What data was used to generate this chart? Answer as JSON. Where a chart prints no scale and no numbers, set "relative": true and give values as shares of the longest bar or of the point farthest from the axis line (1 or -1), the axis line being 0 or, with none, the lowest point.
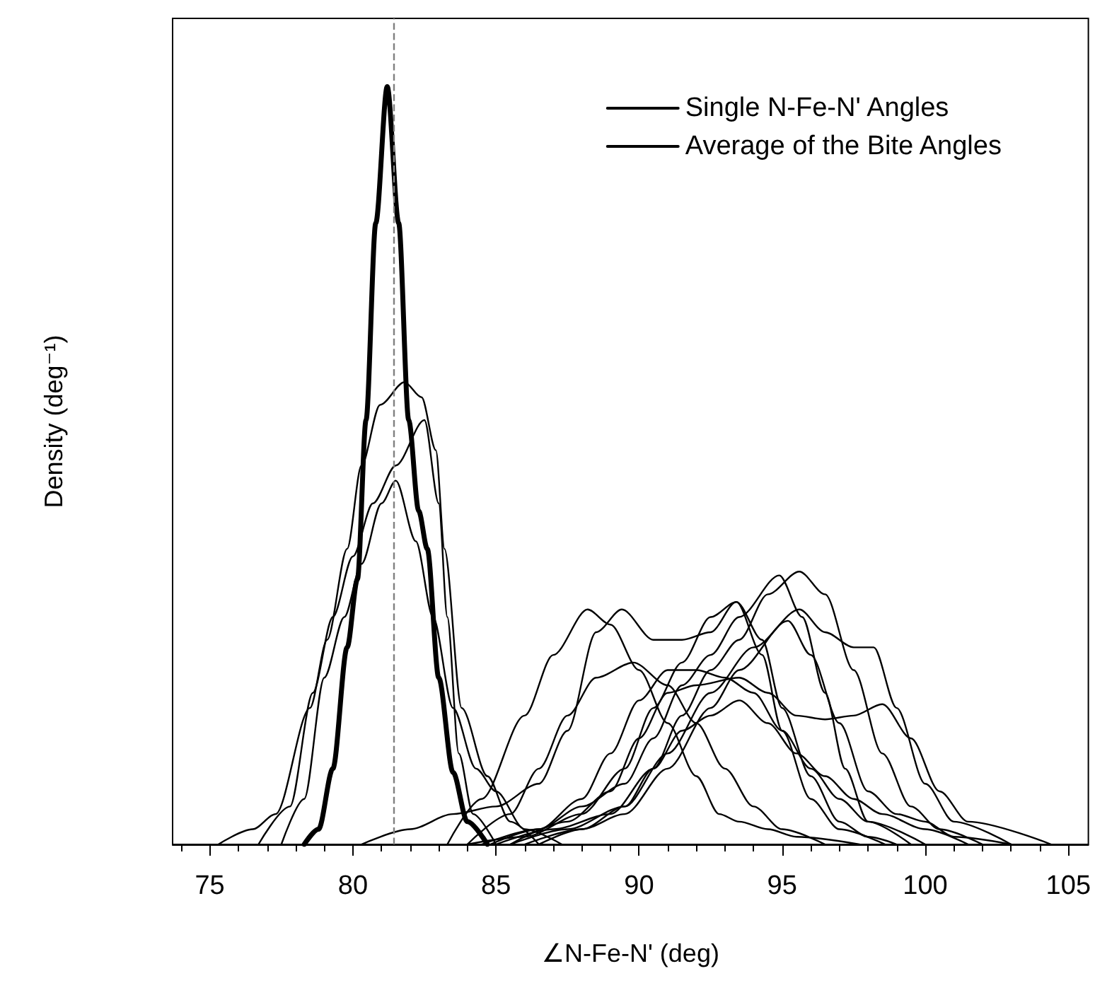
{
  "chart_data": {
    "type": "line",
    "relative": true,
    "xlabel": "∠N-Fe-N' (deg)",
    "ylabel": "Density (deg⁻¹)",
    "xlim": [
      73.7,
      105.7
    ],
    "xticks": [
      75,
      80,
      85,
      90,
      95,
      100,
      105
    ],
    "grid": false,
    "legend": "top right",
    "marker": "none",
    "line_style": "solid",
    "ref_lines": [
      {
        "axis": "x",
        "value": 81.4,
        "label": null,
        "color": "#808080",
        "line_style": "dashed"
      }
    ],
    "series": [
      {
        "name": "Single N-Fe-N' Angles",
        "color": "#000000",
        "x": [
          75.3,
          76.5,
          77.3,
          78.5,
          79.1,
          79.8,
          80.3,
          80.95,
          81.8,
          82.4,
          82.9,
          83.2,
          83.8,
          84.7,
          85.5,
          86.5
        ],
        "values": [
          0,
          0.02,
          0.04,
          0.18,
          0.27,
          0.39,
          0.5,
          0.58,
          0.61,
          0.59,
          0.52,
          0.39,
          0.18,
          0.09,
          0.03,
          0
        ]
      },
      {
        "color": "#000000",
        "x": [
          76.7,
          77.8,
          78.6,
          79.3,
          80,
          80.7,
          81.5,
          82.5,
          83,
          83.3,
          83.7,
          84.2,
          85
        ],
        "values": [
          0,
          0.05,
          0.2,
          0.3,
          0.38,
          0.45,
          0.5,
          0.56,
          0.45,
          0.3,
          0.12,
          0.04,
          0
        ]
      },
      {
        "color": "#000000",
        "x": [
          77.5,
          78.3,
          79,
          79.7,
          80.3,
          81,
          81.5,
          82.2,
          82.8,
          83.5,
          84.3,
          85,
          86,
          87.3
        ],
        "values": [
          0,
          0.06,
          0.22,
          0.3,
          0.37,
          0.45,
          0.48,
          0.4,
          0.3,
          0.18,
          0.1,
          0.07,
          0.02,
          0
        ]
      },
      {
        "color": "#000000",
        "x": [
          83.3,
          84.5,
          86,
          87,
          88.2,
          89,
          90,
          91,
          92,
          92.8,
          93.5,
          94.5,
          95.5,
          97.7
        ],
        "values": [
          0,
          0.06,
          0.17,
          0.25,
          0.31,
          0.29,
          0.23,
          0.16,
          0.09,
          0.04,
          0.03,
          0.02,
          0.01,
          0
        ]
      },
      {
        "color": "#000000",
        "x": [
          80.3,
          82,
          83.5,
          85,
          86.5,
          87.5,
          88.5,
          89.4,
          90.5,
          91.5,
          92.5,
          93.4,
          94.3,
          95,
          96,
          97,
          98.6
        ],
        "values": [
          0,
          0.02,
          0.04,
          0.05,
          0.08,
          0.15,
          0.28,
          0.31,
          0.27,
          0.27,
          0.28,
          0.32,
          0.25,
          0.15,
          0.06,
          0.02,
          0
        ]
      },
      {
        "color": "#000000",
        "x": [
          84,
          85.5,
          86.5,
          87.5,
          88.5,
          89.8,
          91,
          92,
          93,
          94,
          95,
          96.5
        ],
        "values": [
          0,
          0.04,
          0.1,
          0.17,
          0.22,
          0.24,
          0.21,
          0.16,
          0.1,
          0.05,
          0.02,
          0
        ]
      },
      {
        "color": "#000000",
        "x": [
          85,
          87,
          89,
          90.5,
          91.5,
          92.5,
          93.5,
          94.5,
          95.6,
          96.5,
          97.5,
          98.5,
          99.5,
          100.5,
          102
        ],
        "values": [
          0,
          0.02,
          0.04,
          0.1,
          0.17,
          0.23,
          0.27,
          0.33,
          0.36,
          0.33,
          0.23,
          0.12,
          0.05,
          0.02,
          0
        ]
      },
      {
        "color": "#000000",
        "x": [
          84.8,
          86.5,
          88,
          89.5,
          90.5,
          91.5,
          92.5,
          93.5,
          94.9,
          95.7,
          96.5,
          97.2,
          98,
          99.5
        ],
        "values": [
          0,
          0.02,
          0.05,
          0.08,
          0.14,
          0.21,
          0.25,
          0.3,
          0.355,
          0.3,
          0.2,
          0.1,
          0.03,
          0
        ]
      },
      {
        "color": "#000000",
        "x": [
          86,
          88,
          89.5,
          91,
          92.5,
          94,
          95.6,
          96.5,
          97.5,
          98.2,
          99,
          100,
          101,
          103
        ],
        "values": [
          0,
          0.02,
          0.05,
          0.12,
          0.2,
          0.26,
          0.31,
          0.28,
          0.26,
          0.26,
          0.18,
          0.08,
          0.03,
          0
        ]
      },
      {
        "color": "#000000",
        "x": [
          86.5,
          88,
          89.5,
          91,
          92.5,
          93.5,
          95.2,
          96,
          97,
          98,
          99,
          100,
          101,
          103
        ],
        "values": [
          0,
          0.02,
          0.04,
          0.1,
          0.18,
          0.23,
          0.295,
          0.25,
          0.16,
          0.07,
          0.04,
          0.03,
          0.01,
          0
        ]
      },
      {
        "color": "#000000",
        "x": [
          85.5,
          87.5,
          89,
          90,
          91,
          92,
          93.5,
          94.5,
          95.5,
          96.5,
          97.5,
          98.5,
          99.5,
          100.5,
          101.5,
          104.4
        ],
        "values": [
          0,
          0.03,
          0.07,
          0.14,
          0.2,
          0.21,
          0.22,
          0.2,
          0.17,
          0.165,
          0.17,
          0.185,
          0.14,
          0.07,
          0.03,
          0
        ]
      },
      {
        "color": "#000000",
        "x": [
          84,
          86,
          88,
          89.5,
          90.5,
          91.5,
          92.5,
          93.4,
          94.3,
          95,
          96,
          97,
          98,
          99
        ],
        "values": [
          0,
          0.01,
          0.04,
          0.1,
          0.18,
          0.24,
          0.3,
          0.32,
          0.27,
          0.18,
          0.09,
          0.03,
          0.01,
          0
        ]
      },
      {
        "color": "#000000",
        "x": [
          85.5,
          87.5,
          89.5,
          90.5,
          91.5,
          92.5,
          93.5,
          94.5,
          95.5,
          96.5,
          97.5,
          98.5,
          100,
          101.5
        ],
        "values": [
          0,
          0.02,
          0.05,
          0.1,
          0.15,
          0.17,
          0.19,
          0.16,
          0.12,
          0.09,
          0.06,
          0.04,
          0.02,
          0
        ]
      },
      {
        "color": "#000000",
        "x": [
          84.5,
          86.5,
          88,
          89,
          90,
          91,
          92,
          93,
          94,
          95,
          96,
          97,
          98,
          100
        ],
        "values": [
          0,
          0.02,
          0.06,
          0.12,
          0.19,
          0.23,
          0.23,
          0.22,
          0.2,
          0.15,
          0.1,
          0.06,
          0.03,
          0
        ]
      },
      {
        "name": "Average of the Bite Angles",
        "color": "#000000",
        "x": [
          78.3,
          78.8,
          79.3,
          79.8,
          80.16,
          80.46,
          80.8,
          81.2,
          81.6,
          81.95,
          82.3,
          82.6,
          83,
          83.5,
          84,
          84.7
        ],
        "values": [
          0,
          0.02,
          0.1,
          0.26,
          0.35,
          0.56,
          0.82,
          1,
          0.82,
          0.56,
          0.44,
          0.39,
          0.22,
          0.095,
          0.03,
          0
        ]
      }
    ]
  }
}
